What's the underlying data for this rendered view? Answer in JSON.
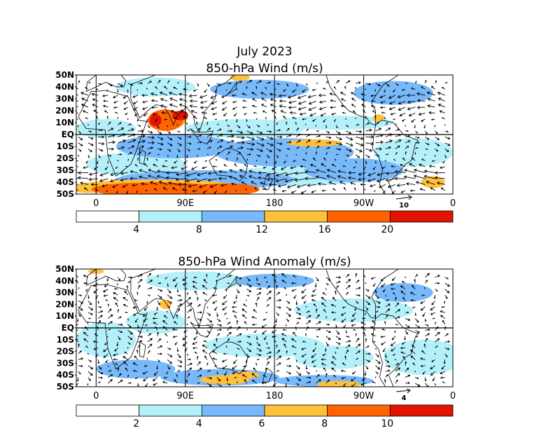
{
  "chart_data": [
    {
      "type": "heatmap",
      "title": "July 2023",
      "subtitle": "850-hPa Wind (m/s)",
      "lat_labels": [
        "50N",
        "40N",
        "30N",
        "20N",
        "10N",
        "EQ",
        "10S",
        "20S",
        "30S",
        "40S",
        "50S"
      ],
      "lon_labels": [
        "0",
        "90E",
        "180",
        "90W",
        "0"
      ],
      "xlim": [
        -20,
        360
      ],
      "ylim": [
        -50,
        50
      ],
      "colorbar": {
        "ticks": [
          "4",
          "8",
          "12",
          "16",
          "20"
        ],
        "colors": [
          "#ffffff",
          "#b4f0fa",
          "#78b9fa",
          "#ffc03c",
          "#ff6400",
          "#e11400"
        ]
      },
      "reference_vector": "10",
      "blobs": [
        {
          "lon": -5,
          "lat": -45,
          "rx": 25,
          "ry": 4,
          "level": 3
        },
        {
          "lon": 60,
          "lat": -46,
          "rx": 65,
          "ry": 6,
          "level": 4
        },
        {
          "lon": 130,
          "lat": -46,
          "rx": 35,
          "ry": 5,
          "level": 4
        },
        {
          "lon": 60,
          "lat": -42,
          "rx": 75,
          "ry": 4,
          "level": 3
        },
        {
          "lon": 70,
          "lat": 12,
          "rx": 18,
          "ry": 9,
          "level": 4
        },
        {
          "lon": 60,
          "lat": 12,
          "rx": 6,
          "ry": 5,
          "level": 5
        },
        {
          "lon": 85,
          "lat": 16,
          "rx": 8,
          "ry": 4,
          "level": 5
        },
        {
          "lon": 77,
          "lat": 12,
          "rx": 14,
          "ry": 6,
          "level": 3
        },
        {
          "lon": 220,
          "lat": -7,
          "rx": 28,
          "ry": 3,
          "level": 3
        },
        {
          "lon": 285,
          "lat": 14,
          "rx": 6,
          "ry": 3,
          "level": 3
        },
        {
          "lon": 340,
          "lat": -40,
          "rx": 12,
          "ry": 5,
          "level": 3
        },
        {
          "lon": 145,
          "lat": 48,
          "rx": 10,
          "ry": 3,
          "level": 3
        },
        {
          "lon": 80,
          "lat": -10,
          "rx": 60,
          "ry": 10,
          "level": 2
        },
        {
          "lon": 190,
          "lat": -15,
          "rx": 70,
          "ry": 12,
          "level": 2
        },
        {
          "lon": 260,
          "lat": -30,
          "rx": 50,
          "ry": 10,
          "level": 2
        },
        {
          "lon": 110,
          "lat": -38,
          "rx": 90,
          "ry": 8,
          "level": 2
        },
        {
          "lon": 165,
          "lat": 38,
          "rx": 50,
          "ry": 8,
          "level": 2
        },
        {
          "lon": 300,
          "lat": 35,
          "rx": 40,
          "ry": 10,
          "level": 2
        },
        {
          "lon": 10,
          "lat": 5,
          "rx": 30,
          "ry": 8,
          "level": 1
        },
        {
          "lon": 150,
          "lat": 5,
          "rx": 60,
          "ry": 8,
          "level": 1
        },
        {
          "lon": 240,
          "lat": 10,
          "rx": 60,
          "ry": 6,
          "level": 1
        },
        {
          "lon": 320,
          "lat": -15,
          "rx": 40,
          "ry": 12,
          "level": 1
        },
        {
          "lon": 40,
          "lat": -25,
          "rx": 50,
          "ry": 10,
          "level": 1
        },
        {
          "lon": 200,
          "lat": -35,
          "rx": 80,
          "ry": 8,
          "level": 1
        },
        {
          "lon": 60,
          "lat": 40,
          "rx": 40,
          "ry": 8,
          "level": 1
        }
      ]
    },
    {
      "type": "heatmap",
      "title": "850-hPa Wind Anomaly (m/s)",
      "lat_labels": [
        "50N",
        "40N",
        "30N",
        "20N",
        "10N",
        "EQ",
        "10S",
        "20S",
        "30S",
        "40S",
        "50S"
      ],
      "lon_labels": [
        "0",
        "90E",
        "180",
        "90W",
        "0"
      ],
      "xlim": [
        -20,
        360
      ],
      "ylim": [
        -50,
        50
      ],
      "colorbar": {
        "ticks": [
          "2",
          "4",
          "6",
          "8",
          "10"
        ],
        "colors": [
          "#ffffff",
          "#b4f0fa",
          "#78b9fa",
          "#ffc03c",
          "#ff6400",
          "#e11400"
        ]
      },
      "reference_vector": "4",
      "blobs": [
        {
          "lon": 130,
          "lat": -44,
          "rx": 25,
          "ry": 4,
          "level": 3
        },
        {
          "lon": 245,
          "lat": -48,
          "rx": 22,
          "ry": 3,
          "level": 3
        },
        {
          "lon": 150,
          "lat": -40,
          "rx": 15,
          "ry": 3,
          "level": 3
        },
        {
          "lon": 70,
          "lat": 20,
          "rx": 6,
          "ry": 4,
          "level": 3
        },
        {
          "lon": 0,
          "lat": 48,
          "rx": 8,
          "ry": 2,
          "level": 3
        },
        {
          "lon": 125,
          "lat": -42,
          "rx": 60,
          "ry": 7,
          "level": 2
        },
        {
          "lon": 230,
          "lat": -45,
          "rx": 50,
          "ry": 5,
          "level": 2
        },
        {
          "lon": 40,
          "lat": -35,
          "rx": 40,
          "ry": 8,
          "level": 2
        },
        {
          "lon": 310,
          "lat": 30,
          "rx": 30,
          "ry": 8,
          "level": 2
        },
        {
          "lon": 180,
          "lat": 40,
          "rx": 40,
          "ry": 6,
          "level": 2
        },
        {
          "lon": 60,
          "lat": 5,
          "rx": 30,
          "ry": 10,
          "level": 1
        },
        {
          "lon": 170,
          "lat": -15,
          "rx": 60,
          "ry": 10,
          "level": 1
        },
        {
          "lon": 260,
          "lat": 15,
          "rx": 60,
          "ry": 10,
          "level": 1
        },
        {
          "lon": 330,
          "lat": -25,
          "rx": 40,
          "ry": 15,
          "level": 1
        },
        {
          "lon": 10,
          "lat": -10,
          "rx": 30,
          "ry": 15,
          "level": 1
        },
        {
          "lon": 100,
          "lat": 40,
          "rx": 50,
          "ry": 8,
          "level": 1
        },
        {
          "lon": 240,
          "lat": -25,
          "rx": 40,
          "ry": 10,
          "level": 1
        }
      ]
    }
  ]
}
